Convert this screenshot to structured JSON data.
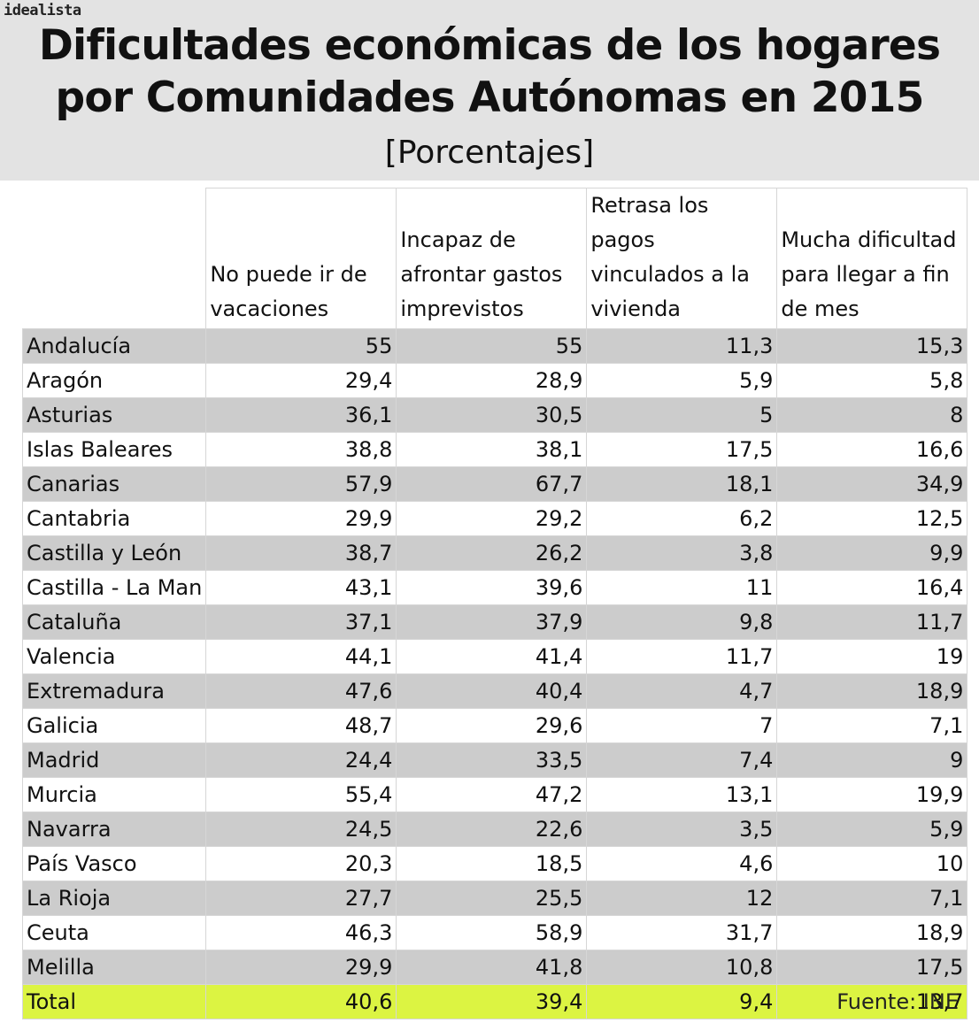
{
  "brand": "idealista",
  "title_line1": "Dificultades económicas de los hogares",
  "title_line2": "por Comunidades Autónomas en 2015",
  "subtitle": "[Porcentajes]",
  "source": "Fuente: INE",
  "colors": {
    "header_bg": "#e3e3e3",
    "shaded_row": "#cccccc",
    "total_row": "#dcf442"
  },
  "chart_data": {
    "type": "table",
    "title": "Dificultades económicas de los hogares por Comunidades Autónomas en 2015",
    "unit": "[Porcentajes]",
    "columns": [
      "No puede ir de vacaciones",
      "Incapaz de afrontar gastos imprevistos",
      "Retrasa los pagos vinculados a la vivienda",
      "Mucha dificultad para llegar a fin de mes"
    ],
    "rows": [
      {
        "region": "Andalucía",
        "values": [
          "55",
          "55",
          "11,3",
          "15,3"
        ]
      },
      {
        "region": "Aragón",
        "values": [
          "29,4",
          "28,9",
          "5,9",
          "5,8"
        ]
      },
      {
        "region": "Asturias",
        "values": [
          "36,1",
          "30,5",
          "5",
          "8"
        ]
      },
      {
        "region": "Islas Baleares",
        "values": [
          "38,8",
          "38,1",
          "17,5",
          "16,6"
        ]
      },
      {
        "region": "Canarias",
        "values": [
          "57,9",
          "67,7",
          "18,1",
          "34,9"
        ]
      },
      {
        "region": "Cantabria",
        "values": [
          "29,9",
          "29,2",
          "6,2",
          "12,5"
        ]
      },
      {
        "region": "Castilla y León",
        "values": [
          "38,7",
          "26,2",
          "3,8",
          "9,9"
        ]
      },
      {
        "region": "Castilla - La Man",
        "values": [
          "43,1",
          "39,6",
          "11",
          "16,4"
        ]
      },
      {
        "region": "Cataluña",
        "values": [
          "37,1",
          "37,9",
          "9,8",
          "11,7"
        ]
      },
      {
        "region": "Valencia",
        "values": [
          "44,1",
          "41,4",
          "11,7",
          "19"
        ]
      },
      {
        "region": "Extremadura",
        "values": [
          "47,6",
          "40,4",
          "4,7",
          "18,9"
        ]
      },
      {
        "region": "Galicia",
        "values": [
          "48,7",
          "29,6",
          "7",
          "7,1"
        ]
      },
      {
        "region": "Madrid",
        "values": [
          "24,4",
          "33,5",
          "7,4",
          "9"
        ]
      },
      {
        "region": "Murcia",
        "values": [
          "55,4",
          "47,2",
          "13,1",
          "19,9"
        ]
      },
      {
        "region": "Navarra",
        "values": [
          "24,5",
          "22,6",
          "3,5",
          "5,9"
        ]
      },
      {
        "region": "País Vasco",
        "values": [
          "20,3",
          "18,5",
          "4,6",
          "10"
        ]
      },
      {
        "region": "La Rioja",
        "values": [
          "27,7",
          "25,5",
          "12",
          "7,1"
        ]
      },
      {
        "region": "Ceuta",
        "values": [
          "46,3",
          "58,9",
          "31,7",
          "18,9"
        ]
      },
      {
        "region": "Melilla",
        "values": [
          "29,9",
          "41,8",
          "10,8",
          "17,5"
        ]
      }
    ],
    "total": {
      "region": "Total",
      "values": [
        "40,6",
        "39,4",
        "9,4",
        "13,7"
      ]
    }
  }
}
